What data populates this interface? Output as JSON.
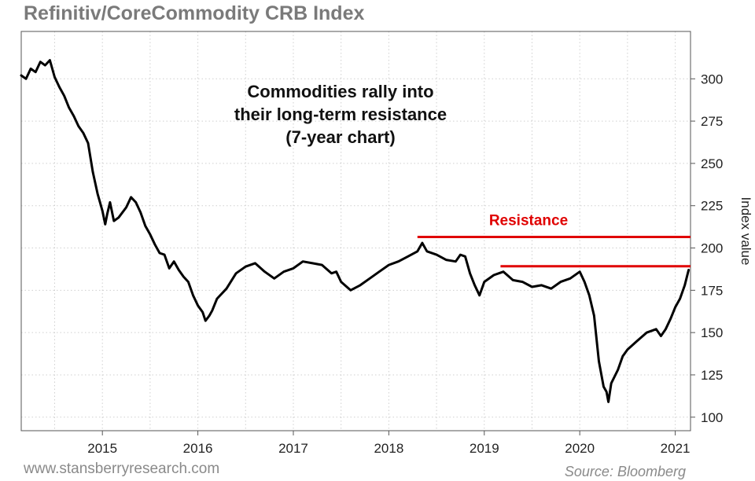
{
  "chart_data": {
    "type": "line",
    "title": "Refinitiv/CoreCommodity CRB Index",
    "annotation": [
      "Commodities rally into",
      "their long-term resistance",
      "(7-year chart)"
    ],
    "ylabel": "Index value",
    "xlabel": "",
    "ylim": [
      92,
      328
    ],
    "xlim": [
      2014.15,
      2021.16
    ],
    "y_ticks": [
      100,
      125,
      150,
      175,
      200,
      225,
      250,
      275,
      300
    ],
    "x_ticks": [
      {
        "value": 2015,
        "label": "2015"
      },
      {
        "value": 2016,
        "label": "2016"
      },
      {
        "value": 2017,
        "label": "2017"
      },
      {
        "value": 2018,
        "label": "2018"
      },
      {
        "value": 2019,
        "label": "2019"
      },
      {
        "value": 2020,
        "label": "2020"
      },
      {
        "value": 2021,
        "label": "2021"
      }
    ],
    "grid": true,
    "series": [
      {
        "color": "#000000",
        "x": [
          2014.15,
          2014.2,
          2014.25,
          2014.3,
          2014.35,
          2014.4,
          2014.45,
          2014.5,
          2014.55,
          2014.6,
          2014.65,
          2014.7,
          2014.75,
          2014.8,
          2014.85,
          2014.9,
          2014.95,
          2015.0,
          2015.03,
          2015.05,
          2015.08,
          2015.12,
          2015.17,
          2015.25,
          2015.3,
          2015.35,
          2015.4,
          2015.45,
          2015.5,
          2015.55,
          2015.6,
          2015.65,
          2015.7,
          2015.75,
          2015.8,
          2015.85,
          2015.9,
          2015.95,
          2016.0,
          2016.05,
          2016.08,
          2016.12,
          2016.15,
          2016.2,
          2016.3,
          2016.4,
          2016.5,
          2016.6,
          2016.7,
          2016.8,
          2016.9,
          2017.0,
          2017.1,
          2017.2,
          2017.3,
          2017.4,
          2017.45,
          2017.5,
          2017.6,
          2017.7,
          2017.8,
          2017.9,
          2018.0,
          2018.1,
          2018.2,
          2018.3,
          2018.35,
          2018.4,
          2018.5,
          2018.6,
          2018.7,
          2018.75,
          2018.8,
          2018.85,
          2018.9,
          2018.95,
          2019.0,
          2019.1,
          2019.2,
          2019.3,
          2019.4,
          2019.5,
          2019.6,
          2019.7,
          2019.8,
          2019.9,
          2020.0,
          2020.05,
          2020.1,
          2020.15,
          2020.2,
          2020.25,
          2020.28,
          2020.3,
          2020.33,
          2020.4,
          2020.45,
          2020.5,
          2020.6,
          2020.7,
          2020.8,
          2020.85,
          2020.9,
          2020.95,
          2021.0,
          2021.05,
          2021.1,
          2021.14
        ],
        "values": [
          302,
          300,
          306,
          304,
          310,
          308,
          311,
          301,
          295,
          290,
          283,
          278,
          272,
          268,
          262,
          245,
          232,
          222,
          214,
          220,
          227,
          216,
          218,
          224,
          230,
          227,
          221,
          213,
          208,
          202,
          197,
          196,
          188,
          192,
          187,
          183,
          180,
          172,
          166,
          162,
          157,
          160,
          163,
          170,
          176,
          185,
          189,
          191,
          186,
          182,
          186,
          188,
          192,
          191,
          190,
          185,
          186,
          180,
          175,
          178,
          182,
          186,
          190,
          192,
          195,
          198,
          203,
          198,
          196,
          193,
          192,
          196,
          195,
          185,
          178,
          172,
          180,
          184,
          186,
          181,
          180,
          177,
          178,
          176,
          180,
          182,
          186,
          180,
          172,
          160,
          133,
          118,
          115,
          109,
          120,
          128,
          136,
          140,
          145,
          150,
          152,
          148,
          152,
          158,
          165,
          170,
          178,
          187
        ]
      }
    ],
    "resistance": {
      "label": "Resistance",
      "color": "#e00000",
      "levels": [
        {
          "y": 206.5,
          "x_start": 2018.3,
          "x_end": 2021.16
        },
        {
          "y": 189.2,
          "x_start": 2019.17,
          "x_end": 2021.16
        }
      ]
    }
  },
  "footer": {
    "website": "www.stansberryresearch.com",
    "source": "Source: Bloomberg"
  }
}
